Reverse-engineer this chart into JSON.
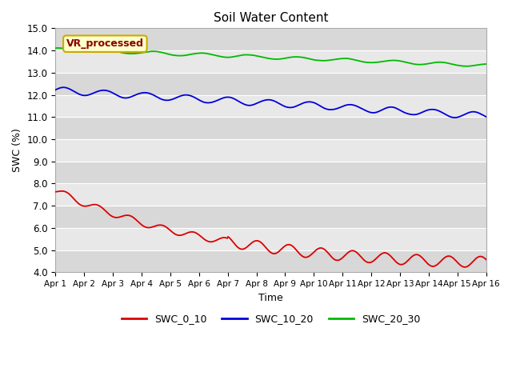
{
  "title": "Soil Water Content",
  "xlabel": "Time",
  "ylabel": "SWC (%)",
  "legend_label": "VR_processed",
  "ylim": [
    4.0,
    15.0
  ],
  "yticks": [
    4.0,
    5.0,
    6.0,
    7.0,
    8.0,
    9.0,
    10.0,
    11.0,
    12.0,
    13.0,
    14.0,
    15.0
  ],
  "xtick_labels": [
    "Apr 1",
    "Apr 2",
    "Apr 3",
    "Apr 4",
    "Apr 5",
    "Apr 6",
    "Apr 7",
    "Apr 8",
    "Apr 9",
    "Apr 10",
    "Apr 11",
    "Apr 12",
    "Apr 13",
    "Apr 14",
    "Apr 15",
    "Apr 16"
  ],
  "n_points": 600,
  "colors": {
    "SWC_0_10": "#dd0000",
    "SWC_10_20": "#0000dd",
    "SWC_20_30": "#00bb00"
  },
  "band_colors": [
    "#d8d8d8",
    "#e8e8e8"
  ],
  "legend_box_facecolor": "#ffffcc",
  "legend_box_edgecolor": "#ccaa00",
  "legend_text_color": "#880000"
}
